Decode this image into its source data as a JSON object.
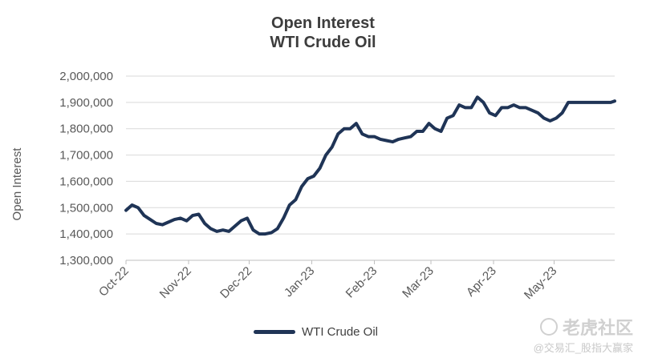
{
  "chart_data": {
    "type": "line",
    "title": "Open Interest",
    "subtitle": "WTI Crude Oil",
    "xlabel": "",
    "ylabel": "Open Interest",
    "ylim": [
      1300000,
      2000000
    ],
    "y_ticks": [
      "1,300,000",
      "1,400,000",
      "1,500,000",
      "1,600,000",
      "1,700,000",
      "1,800,000",
      "1,900,000",
      "2,000,000"
    ],
    "x_ticks": [
      "Oct-22",
      "Nov-22",
      "Dec-22",
      "Jan-23",
      "Feb-23",
      "Mar-23",
      "Apr-23",
      "May-23"
    ],
    "grid": "horizontal",
    "legend_position": "bottom",
    "series": [
      {
        "name": "WTI Crude Oil",
        "color": "#1f3456",
        "x": [
          "2022-10-01",
          "2022-10-04",
          "2022-10-07",
          "2022-10-10",
          "2022-10-13",
          "2022-10-16",
          "2022-10-19",
          "2022-10-22",
          "2022-10-25",
          "2022-10-28",
          "2022-10-31",
          "2022-11-03",
          "2022-11-06",
          "2022-11-09",
          "2022-11-12",
          "2022-11-15",
          "2022-11-18",
          "2022-11-21",
          "2022-11-24",
          "2022-11-27",
          "2022-11-30",
          "2022-12-03",
          "2022-12-06",
          "2022-12-09",
          "2022-12-12",
          "2022-12-15",
          "2022-12-18",
          "2022-12-21",
          "2022-12-24",
          "2022-12-27",
          "2022-12-30",
          "2023-01-02",
          "2023-01-05",
          "2023-01-08",
          "2023-01-11",
          "2023-01-14",
          "2023-01-17",
          "2023-01-20",
          "2023-01-23",
          "2023-01-26",
          "2023-01-29",
          "2023-02-01",
          "2023-02-04",
          "2023-02-07",
          "2023-02-10",
          "2023-02-13",
          "2023-02-16",
          "2023-02-19",
          "2023-02-22",
          "2023-02-25",
          "2023-02-28",
          "2023-03-03",
          "2023-03-06",
          "2023-03-09",
          "2023-03-12",
          "2023-03-15",
          "2023-03-18",
          "2023-03-21",
          "2023-03-24",
          "2023-03-27",
          "2023-03-30",
          "2023-04-02",
          "2023-04-05",
          "2023-04-08",
          "2023-04-11",
          "2023-04-14",
          "2023-04-17",
          "2023-04-20",
          "2023-04-23",
          "2023-04-26",
          "2023-04-29",
          "2023-05-02",
          "2023-05-05",
          "2023-05-08",
          "2023-05-11",
          "2023-05-14",
          "2023-05-17",
          "2023-05-20",
          "2023-05-23",
          "2023-05-26",
          "2023-05-29",
          "2023-05-31"
        ],
        "values": [
          1490000,
          1510000,
          1500000,
          1470000,
          1455000,
          1440000,
          1435000,
          1445000,
          1455000,
          1460000,
          1450000,
          1470000,
          1475000,
          1440000,
          1420000,
          1410000,
          1415000,
          1410000,
          1430000,
          1450000,
          1460000,
          1415000,
          1400000,
          1400000,
          1405000,
          1420000,
          1460000,
          1510000,
          1530000,
          1580000,
          1610000,
          1620000,
          1650000,
          1700000,
          1730000,
          1780000,
          1800000,
          1800000,
          1820000,
          1780000,
          1770000,
          1770000,
          1760000,
          1755000,
          1750000,
          1760000,
          1765000,
          1770000,
          1790000,
          1790000,
          1820000,
          1800000,
          1790000,
          1840000,
          1850000,
          1890000,
          1880000,
          1880000,
          1920000,
          1900000,
          1860000,
          1850000,
          1880000,
          1880000,
          1890000,
          1880000,
          1880000,
          1870000,
          1860000,
          1840000,
          1830000,
          1840000,
          1860000,
          1900000,
          1900000,
          1900000,
          1900000,
          1900000,
          1900000,
          1900000,
          1900000,
          1905000
        ]
      }
    ]
  },
  "watermark": {
    "brand": "老虎社区",
    "handle": "@交易汇_股指大赢家"
  }
}
